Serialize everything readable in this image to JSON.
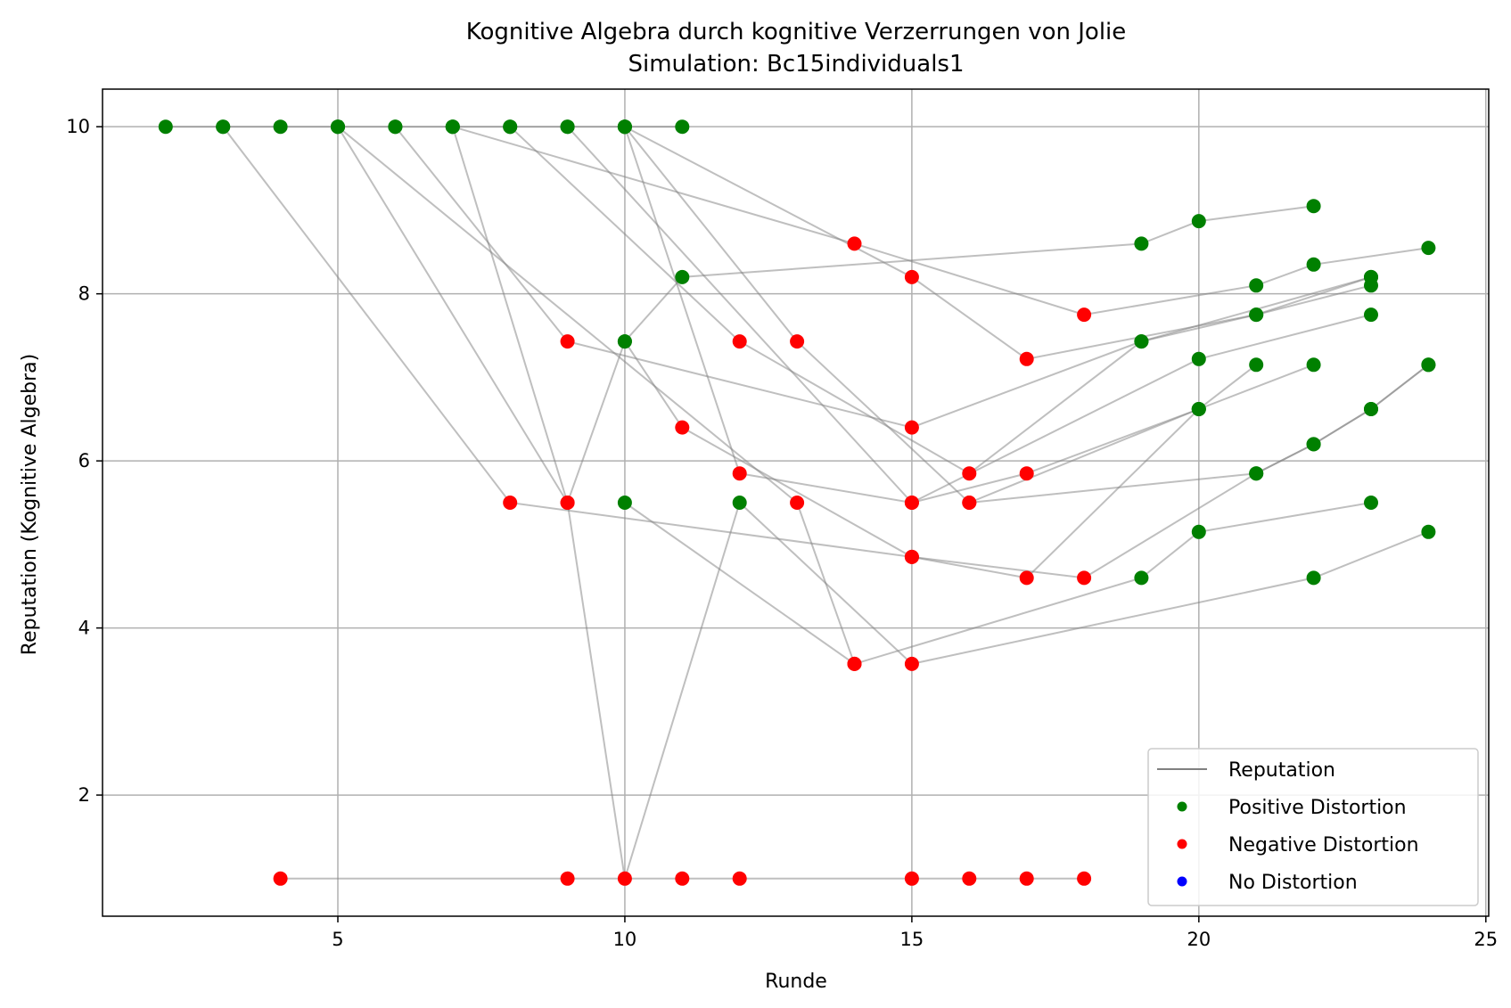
{
  "chart_data": {
    "type": "scatter",
    "title": "Kognitive Algebra durch kognitive Verzerrungen von Jolie",
    "subtitle": "Simulation: Bc15individuals1",
    "xlabel": "Runde",
    "ylabel": "Reputation (Kognitive Algebra)",
    "xlim": [
      0.9,
      25.05
    ],
    "ylim": [
      0.55,
      10.45
    ],
    "xticks": [
      5,
      10,
      15,
      20,
      25
    ],
    "yticks": [
      2,
      4,
      6,
      8,
      10
    ],
    "grid": true,
    "legend_position": "bottom-right",
    "legend": [
      "Reputation",
      "Positive Distortion",
      "Negative Distortion",
      "No Distortion"
    ],
    "colors": {
      "line": "#808080",
      "positive": "#008000",
      "negative": "#ff0000",
      "none": "#0000ff",
      "grid": "#b0b0b0"
    },
    "series": [
      {
        "points": [
          [
            2,
            10
          ],
          [
            3,
            10
          ],
          [
            4,
            10
          ],
          [
            5,
            10
          ],
          [
            6,
            10
          ],
          [
            7,
            10
          ],
          [
            8,
            10
          ],
          [
            9,
            10
          ],
          [
            10,
            10
          ],
          [
            11,
            10
          ]
        ],
        "distortion": [
          "positive",
          "positive",
          "positive",
          "positive",
          "positive",
          "positive",
          "positive",
          "positive",
          "positive",
          "positive"
        ]
      },
      {
        "points": [
          [
            3,
            10
          ],
          [
            8,
            5.5
          ],
          [
            15,
            4.85
          ],
          [
            18,
            4.6
          ],
          [
            21,
            5.85
          ],
          [
            22,
            6.2
          ],
          [
            23,
            6.62
          ],
          [
            24,
            7.15
          ]
        ],
        "distortion": [
          "positive",
          "negative",
          "negative",
          "negative",
          "positive",
          "positive",
          "positive",
          "positive"
        ]
      },
      {
        "points": [
          [
            4,
            1
          ],
          [
            9,
            1
          ],
          [
            11,
            1
          ],
          [
            12,
            1
          ],
          [
            15,
            1
          ],
          [
            16,
            1
          ],
          [
            17,
            1
          ],
          [
            18,
            1
          ]
        ],
        "distortion": [
          "negative",
          "negative",
          "negative",
          "negative",
          "negative",
          "negative",
          "negative",
          "negative"
        ]
      },
      {
        "points": [
          [
            5,
            10
          ],
          [
            9,
            5.5
          ],
          [
            10,
            7.43
          ],
          [
            11,
            8.2
          ],
          [
            19,
            8.6
          ],
          [
            20,
            8.87
          ],
          [
            22,
            9.05
          ]
        ],
        "distortion": [
          "positive",
          "negative",
          "positive",
          "positive",
          "positive",
          "positive",
          "positive"
        ]
      },
      {
        "points": [
          [
            5,
            10
          ],
          [
            13,
            5.5
          ],
          [
            14,
            3.57
          ],
          [
            19,
            4.6
          ],
          [
            20,
            5.15
          ],
          [
            23,
            5.5
          ]
        ],
        "distortion": [
          "positive",
          "negative",
          "negative",
          "positive",
          "positive",
          "positive"
        ]
      },
      {
        "points": [
          [
            6,
            10
          ],
          [
            9,
            7.43
          ],
          [
            15,
            6.4
          ],
          [
            19,
            7.43
          ],
          [
            23,
            8.2
          ]
        ],
        "distortion": [
          "positive",
          "negative",
          "negative",
          "positive",
          "positive"
        ]
      },
      {
        "points": [
          [
            7,
            10
          ],
          [
            9,
            5.5
          ],
          [
            10,
            1
          ],
          [
            12,
            5.5
          ],
          [
            15,
            3.57
          ],
          [
            22,
            4.6
          ],
          [
            24,
            5.15
          ]
        ],
        "distortion": [
          "positive",
          "negative",
          "negative",
          "positive",
          "negative",
          "positive",
          "positive"
        ]
      },
      {
        "points": [
          [
            7,
            10
          ],
          [
            14,
            8.6
          ],
          [
            18,
            7.75
          ],
          [
            21,
            8.1
          ],
          [
            22,
            8.35
          ],
          [
            24,
            8.55
          ]
        ],
        "distortion": [
          "positive",
          "negative",
          "negative",
          "positive",
          "positive",
          "positive"
        ]
      },
      {
        "points": [
          [
            8,
            10
          ],
          [
            12,
            7.43
          ],
          [
            16,
            5.85
          ],
          [
            19,
            7.43
          ],
          [
            21,
            7.75
          ],
          [
            23,
            8.1
          ]
        ],
        "distortion": [
          "positive",
          "negative",
          "negative",
          "positive",
          "positive",
          "positive"
        ]
      },
      {
        "points": [
          [
            9,
            10
          ],
          [
            15,
            5.5
          ],
          [
            17,
            5.85
          ],
          [
            20,
            6.62
          ],
          [
            21,
            7.15
          ]
        ],
        "distortion": [
          "positive",
          "negative",
          "negative",
          "positive",
          "positive"
        ]
      },
      {
        "points": [
          [
            10,
            10
          ],
          [
            15,
            8.2
          ],
          [
            17,
            7.22
          ],
          [
            21,
            7.75
          ],
          [
            23,
            8.2
          ]
        ],
        "distortion": [
          "positive",
          "negative",
          "negative",
          "positive",
          "positive"
        ]
      },
      {
        "points": [
          [
            10,
            10
          ],
          [
            13,
            7.43
          ],
          [
            16,
            5.5
          ],
          [
            20,
            6.62
          ],
          [
            22,
            7.15
          ]
        ],
        "distortion": [
          "positive",
          "negative",
          "negative",
          "positive",
          "positive"
        ]
      },
      {
        "points": [
          [
            10,
            10
          ],
          [
            12,
            5.85
          ],
          [
            15,
            5.5
          ],
          [
            20,
            7.22
          ],
          [
            23,
            7.75
          ]
        ],
        "distortion": [
          "positive",
          "negative",
          "negative",
          "positive",
          "positive"
        ]
      },
      {
        "points": [
          [
            10,
            7.43
          ],
          [
            11,
            6.4
          ],
          [
            15,
            4.85
          ],
          [
            17,
            4.6
          ],
          [
            20,
            6.62
          ]
        ],
        "distortion": [
          "positive",
          "negative",
          "negative",
          "negative",
          "positive"
        ]
      },
      {
        "points": [
          [
            10,
            5.5
          ],
          [
            14,
            3.57
          ]
        ],
        "distortion": [
          "positive",
          "negative"
        ]
      },
      {
        "points": [
          [
            16,
            5.5
          ],
          [
            21,
            5.85
          ],
          [
            22,
            6.2
          ],
          [
            23,
            6.62
          ],
          [
            24,
            7.15
          ]
        ],
        "distortion": [
          "negative",
          "positive",
          "positive",
          "positive",
          "positive"
        ]
      }
    ]
  }
}
